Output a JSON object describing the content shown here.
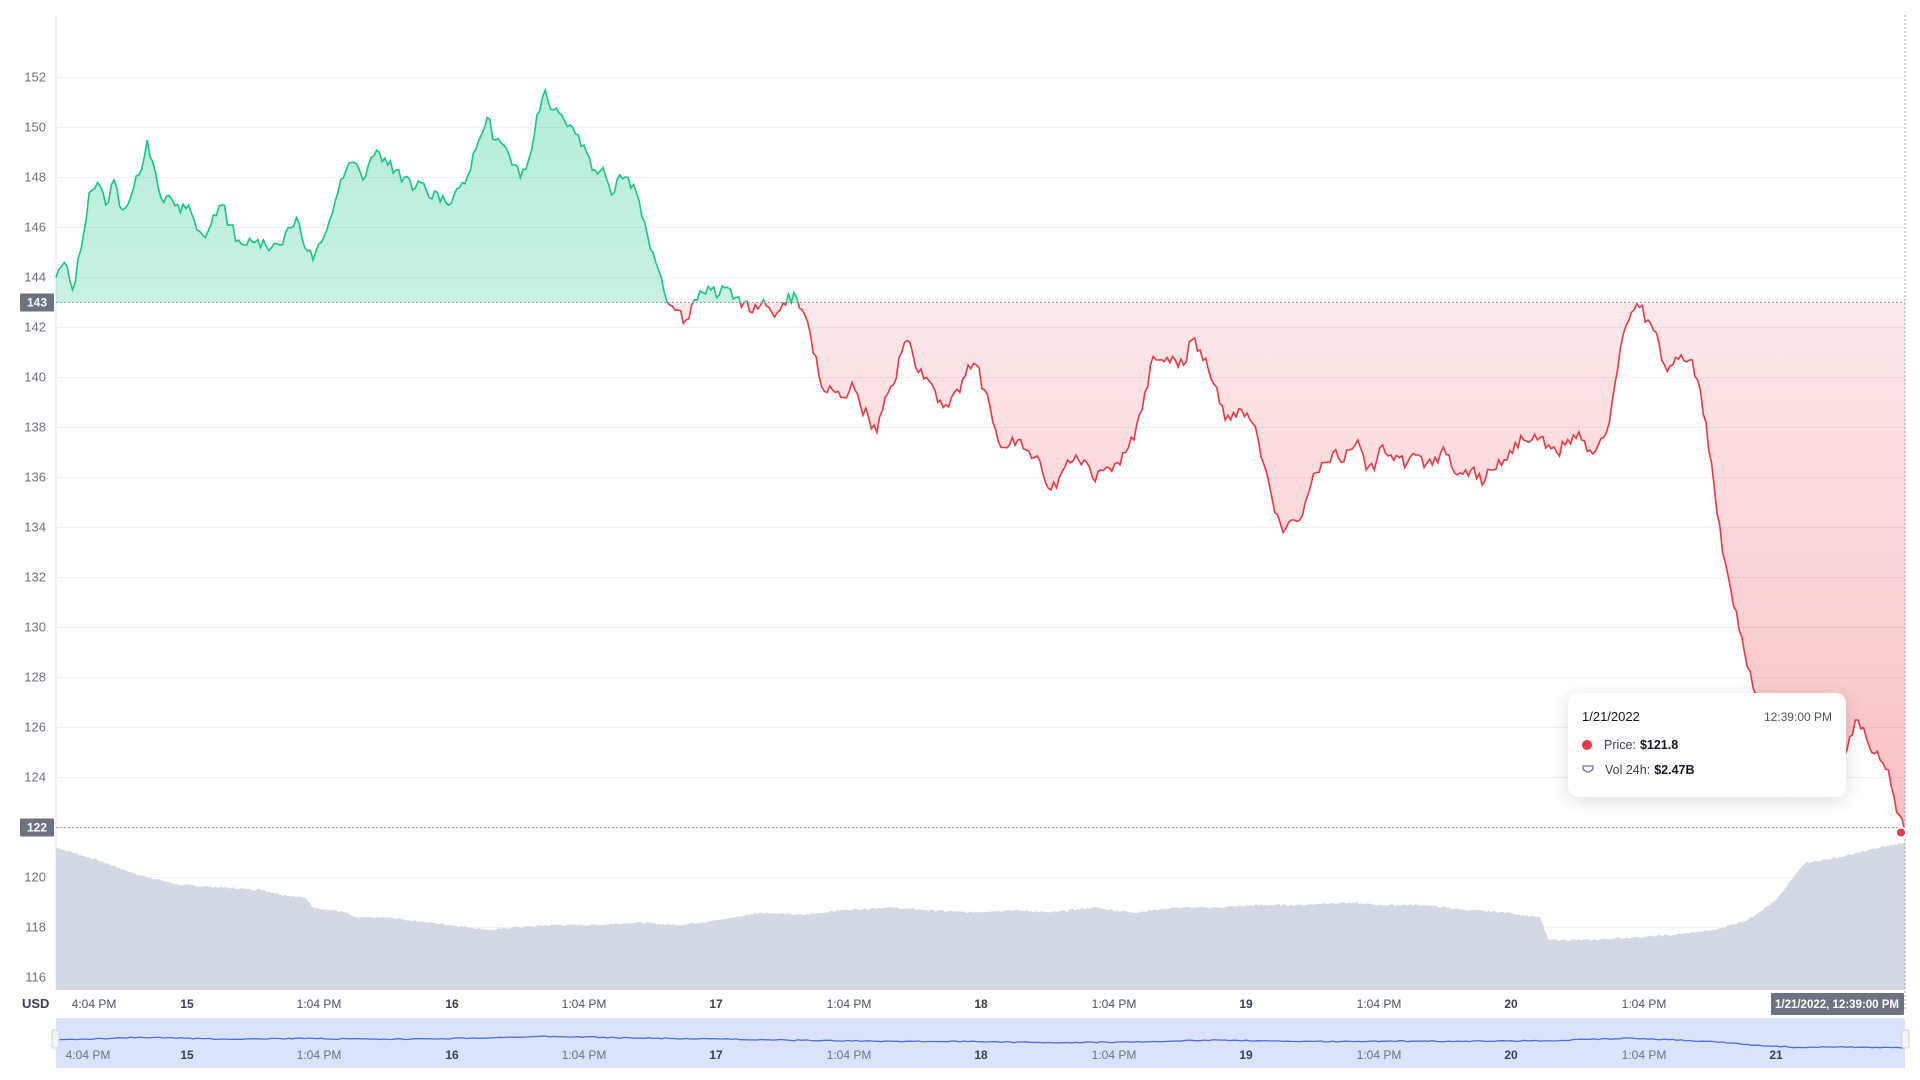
{
  "chart_data": {
    "type": "line",
    "currency_label": "USD",
    "y_ticks": [
      116,
      118,
      120,
      122,
      124,
      126,
      128,
      130,
      132,
      134,
      136,
      138,
      140,
      142,
      144,
      146,
      148,
      150,
      152
    ],
    "ylim": [
      115.5,
      153.5
    ],
    "reference_price": 143,
    "reference_label": "143",
    "current_label": "122",
    "colors": {
      "up": "#16c784",
      "down": "#ea3943",
      "volume": "#d3d9e4",
      "navigator": "#dbe3fc",
      "navigator_line": "#4a6ee0"
    },
    "x_ticks": [
      {
        "label": "4:04 PM",
        "day": false
      },
      {
        "label": "15",
        "day": true
      },
      {
        "label": "1:04 PM",
        "day": false
      },
      {
        "label": "16",
        "day": true
      },
      {
        "label": "1:04 PM",
        "day": false
      },
      {
        "label": "17",
        "day": true
      },
      {
        "label": "1:04 PM",
        "day": false
      },
      {
        "label": "18",
        "day": true
      },
      {
        "label": "1:04 PM",
        "day": false
      },
      {
        "label": "19",
        "day": true
      },
      {
        "label": "1:04 PM",
        "day": false
      },
      {
        "label": "20",
        "day": true
      },
      {
        "label": "1:04 PM",
        "day": false
      }
    ],
    "nav_ticks": [
      {
        "label": "4:04 PM",
        "day": false
      },
      {
        "label": "15",
        "day": true
      },
      {
        "label": "1:04 PM",
        "day": false
      },
      {
        "label": "16",
        "day": true
      },
      {
        "label": "1:04 PM",
        "day": false
      },
      {
        "label": "17",
        "day": true
      },
      {
        "label": "1:04 PM",
        "day": false
      },
      {
        "label": "18",
        "day": true
      },
      {
        "label": "1:04 PM",
        "day": false
      },
      {
        "label": "19",
        "day": true
      },
      {
        "label": "1:04 PM",
        "day": false
      },
      {
        "label": "20",
        "day": true
      },
      {
        "label": "1:04 PM",
        "day": false
      },
      {
        "label": "21",
        "day": true
      }
    ],
    "crosshair_label": "1/21/2022, 12:39:00 PM",
    "price_series": {
      "name": "Price",
      "points": [
        [
          0,
          144.0
        ],
        [
          0.02,
          144.6
        ],
        [
          0.04,
          143.5
        ],
        [
          0.06,
          145.1
        ],
        [
          0.08,
          147.4
        ],
        [
          0.1,
          147.8
        ],
        [
          0.12,
          146.9
        ],
        [
          0.14,
          147.9
        ],
        [
          0.16,
          146.7
        ],
        [
          0.18,
          147.2
        ],
        [
          0.2,
          148.1
        ],
        [
          0.22,
          149.5
        ],
        [
          0.24,
          148.2
        ],
        [
          0.26,
          147.0
        ],
        [
          0.28,
          147.1
        ],
        [
          0.3,
          146.6
        ],
        [
          0.32,
          146.9
        ],
        [
          0.34,
          145.9
        ],
        [
          0.36,
          145.6
        ],
        [
          0.38,
          146.5
        ],
        [
          0.4,
          146.9
        ],
        [
          0.42,
          146.1
        ],
        [
          0.44,
          145.5
        ],
        [
          0.46,
          145.3
        ],
        [
          0.48,
          145.4
        ],
        [
          0.5,
          145.5
        ],
        [
          0.52,
          145.2
        ],
        [
          0.54,
          145.3
        ],
        [
          0.56,
          146.0
        ],
        [
          0.58,
          146.4
        ],
        [
          0.6,
          145.2
        ],
        [
          0.62,
          144.7
        ],
        [
          0.64,
          145.4
        ],
        [
          0.66,
          146.3
        ],
        [
          0.68,
          147.4
        ],
        [
          0.7,
          148.3
        ],
        [
          0.72,
          148.6
        ],
        [
          0.74,
          147.9
        ],
        [
          0.76,
          148.8
        ],
        [
          0.78,
          149.0
        ],
        [
          0.8,
          148.5
        ],
        [
          0.82,
          148.3
        ],
        [
          0.84,
          148.0
        ],
        [
          0.86,
          147.5
        ],
        [
          0.88,
          147.8
        ],
        [
          0.9,
          147.2
        ],
        [
          0.92,
          147.4
        ],
        [
          0.94,
          147.0
        ],
        [
          0.96,
          147.3
        ],
        [
          0.98,
          147.8
        ],
        [
          1.0,
          148.3
        ],
        [
          1.02,
          149.5
        ],
        [
          1.04,
          150.4
        ],
        [
          1.06,
          149.5
        ],
        [
          1.08,
          149.3
        ],
        [
          1.1,
          148.5
        ],
        [
          1.12,
          148.0
        ],
        [
          1.14,
          148.7
        ],
        [
          1.16,
          150.5
        ],
        [
          1.18,
          151.5
        ],
        [
          1.2,
          150.7
        ],
        [
          1.22,
          150.5
        ],
        [
          1.24,
          150.1
        ],
        [
          1.26,
          149.7
        ],
        [
          1.28,
          149.0
        ],
        [
          1.3,
          148.3
        ],
        [
          1.32,
          148.4
        ],
        [
          1.34,
          147.3
        ],
        [
          1.36,
          148.1
        ],
        [
          1.38,
          148.0
        ],
        [
          1.4,
          147.4
        ],
        [
          1.42,
          146.2
        ],
        [
          1.44,
          145.0
        ],
        [
          1.46,
          144.0
        ],
        [
          1.48,
          142.9
        ],
        [
          1.5,
          142.7
        ],
        [
          1.52,
          142.3
        ],
        [
          1.54,
          143.1
        ],
        [
          1.56,
          143.4
        ],
        [
          1.58,
          143.5
        ],
        [
          1.6,
          143.3
        ],
        [
          1.62,
          143.6
        ],
        [
          1.64,
          143.2
        ],
        [
          1.66,
          143.0
        ],
        [
          1.68,
          142.6
        ],
        [
          1.7,
          142.9
        ],
        [
          1.72,
          142.8
        ],
        [
          1.74,
          142.6
        ],
        [
          1.76,
          142.9
        ],
        [
          1.78,
          143.4
        ],
        [
          1.8,
          142.7
        ],
        [
          1.82,
          141.7
        ],
        [
          1.84,
          140.1
        ],
        [
          1.86,
          139.4
        ],
        [
          1.88,
          139.4
        ],
        [
          1.9,
          139.2
        ],
        [
          1.92,
          139.8
        ],
        [
          1.94,
          138.9
        ],
        [
          1.96,
          138.4
        ],
        [
          1.98,
          137.8
        ],
        [
          2.0,
          139.2
        ],
        [
          2.02,
          139.7
        ],
        [
          2.04,
          141.0
        ],
        [
          2.06,
          141.4
        ],
        [
          2.08,
          140.2
        ],
        [
          2.1,
          140.0
        ],
        [
          2.12,
          139.5
        ],
        [
          2.14,
          138.8
        ],
        [
          2.16,
          139.2
        ],
        [
          2.18,
          139.4
        ],
        [
          2.2,
          140.5
        ],
        [
          2.22,
          140.5
        ],
        [
          2.24,
          139.5
        ],
        [
          2.26,
          138.2
        ],
        [
          2.28,
          137.2
        ],
        [
          2.3,
          137.3
        ],
        [
          2.32,
          137.5
        ],
        [
          2.34,
          137.1
        ],
        [
          2.36,
          136.8
        ],
        [
          2.38,
          136.2
        ],
        [
          2.4,
          135.5
        ],
        [
          2.42,
          136.0
        ],
        [
          2.44,
          136.7
        ],
        [
          2.46,
          136.9
        ],
        [
          2.48,
          136.7
        ],
        [
          2.5,
          136.0
        ],
        [
          2.52,
          136.3
        ],
        [
          2.54,
          136.4
        ],
        [
          2.56,
          136.6
        ],
        [
          2.58,
          137.0
        ],
        [
          2.6,
          137.5
        ],
        [
          2.62,
          138.7
        ],
        [
          2.64,
          140.5
        ],
        [
          2.66,
          140.7
        ],
        [
          2.68,
          140.8
        ],
        [
          2.7,
          140.7
        ],
        [
          2.72,
          140.5
        ],
        [
          2.74,
          141.5
        ],
        [
          2.76,
          141.1
        ],
        [
          2.78,
          140.3
        ],
        [
          2.8,
          139.6
        ],
        [
          2.82,
          138.3
        ],
        [
          2.84,
          138.6
        ],
        [
          2.86,
          138.7
        ],
        [
          2.88,
          138.3
        ],
        [
          2.9,
          137.5
        ],
        [
          2.92,
          136.2
        ],
        [
          2.94,
          134.6
        ],
        [
          2.96,
          133.8
        ],
        [
          2.98,
          134.3
        ],
        [
          3.0,
          134.3
        ],
        [
          3.02,
          135.3
        ],
        [
          3.04,
          136.2
        ],
        [
          3.06,
          136.6
        ],
        [
          3.08,
          137.0
        ],
        [
          3.1,
          136.6
        ],
        [
          3.12,
          137.1
        ],
        [
          3.14,
          137.5
        ],
        [
          3.16,
          136.3
        ],
        [
          3.18,
          136.3
        ],
        [
          3.2,
          137.3
        ],
        [
          3.22,
          136.9
        ],
        [
          3.24,
          136.8
        ],
        [
          3.26,
          136.6
        ],
        [
          3.28,
          136.9
        ],
        [
          3.3,
          136.4
        ],
        [
          3.32,
          136.5
        ],
        [
          3.34,
          137.0
        ],
        [
          3.36,
          136.9
        ],
        [
          3.38,
          136.1
        ],
        [
          3.4,
          136.3
        ],
        [
          3.42,
          136.4
        ],
        [
          3.44,
          135.7
        ],
        [
          3.46,
          136.3
        ],
        [
          3.48,
          136.7
        ],
        [
          3.5,
          136.7
        ],
        [
          3.52,
          137.4
        ],
        [
          3.54,
          137.5
        ],
        [
          3.56,
          137.5
        ],
        [
          3.58,
          137.6
        ],
        [
          3.6,
          137.3
        ],
        [
          3.62,
          137.0
        ],
        [
          3.64,
          137.3
        ],
        [
          3.66,
          137.7
        ],
        [
          3.68,
          137.5
        ],
        [
          3.7,
          137.1
        ],
        [
          3.72,
          137.3
        ],
        [
          3.74,
          137.8
        ],
        [
          3.76,
          139.7
        ],
        [
          3.78,
          141.7
        ],
        [
          3.8,
          142.6
        ],
        [
          3.82,
          142.8
        ],
        [
          3.84,
          142.3
        ],
        [
          3.86,
          141.8
        ],
        [
          3.88,
          140.5
        ],
        [
          3.9,
          140.5
        ],
        [
          3.92,
          140.9
        ],
        [
          3.94,
          140.7
        ],
        [
          3.96,
          139.9
        ],
        [
          3.98,
          138.2
        ],
        [
          4.0,
          135.6
        ],
        [
          4.02,
          133.0
        ],
        [
          4.04,
          131.5
        ],
        [
          4.06,
          129.9
        ],
        [
          4.08,
          128.4
        ],
        [
          4.1,
          127.3
        ],
        [
          4.12,
          126.2
        ],
        [
          4.14,
          125.2
        ],
        [
          4.16,
          123.8
        ],
        [
          4.17,
          123.3
        ],
        [
          4.18,
          124.4
        ],
        [
          4.2,
          125.3
        ],
        [
          4.22,
          125.9
        ],
        [
          4.24,
          125.4
        ],
        [
          4.26,
          126.3
        ],
        [
          4.28,
          125.9
        ],
        [
          4.3,
          125.0
        ],
        [
          4.32,
          125.1
        ],
        [
          4.34,
          126.3
        ],
        [
          4.36,
          126.0
        ],
        [
          4.38,
          125.0
        ],
        [
          4.4,
          124.7
        ],
        [
          4.42,
          124.3
        ],
        [
          4.44,
          122.6
        ],
        [
          4.46,
          121.8
        ]
      ]
    },
    "volume_series": {
      "name": "Vol 24h",
      "points": [
        [
          0,
          121.2
        ],
        [
          0.1,
          120.7
        ],
        [
          0.2,
          120.1
        ],
        [
          0.3,
          119.7
        ],
        [
          0.4,
          119.6
        ],
        [
          0.5,
          119.5
        ],
        [
          0.55,
          119.3
        ],
        [
          0.6,
          119.2
        ],
        [
          0.62,
          118.8
        ],
        [
          0.7,
          118.6
        ],
        [
          0.72,
          118.4
        ],
        [
          0.8,
          118.4
        ],
        [
          0.9,
          118.2
        ],
        [
          1.0,
          118.0
        ],
        [
          1.05,
          117.9
        ],
        [
          1.1,
          118.0
        ],
        [
          1.2,
          118.1
        ],
        [
          1.3,
          118.1
        ],
        [
          1.4,
          118.2
        ],
        [
          1.5,
          118.1
        ],
        [
          1.6,
          118.3
        ],
        [
          1.7,
          118.6
        ],
        [
          1.8,
          118.5
        ],
        [
          1.9,
          118.7
        ],
        [
          2.0,
          118.8
        ],
        [
          2.1,
          118.7
        ],
        [
          2.2,
          118.6
        ],
        [
          2.3,
          118.7
        ],
        [
          2.4,
          118.6
        ],
        [
          2.5,
          118.8
        ],
        [
          2.6,
          118.6
        ],
        [
          2.7,
          118.8
        ],
        [
          2.8,
          118.8
        ],
        [
          2.9,
          118.9
        ],
        [
          3.0,
          118.9
        ],
        [
          3.1,
          119.0
        ],
        [
          3.2,
          118.9
        ],
        [
          3.3,
          118.9
        ],
        [
          3.4,
          118.7
        ],
        [
          3.5,
          118.6
        ],
        [
          3.58,
          118.4
        ],
        [
          3.6,
          117.5
        ],
        [
          3.7,
          117.5
        ],
        [
          3.8,
          117.6
        ],
        [
          3.9,
          117.7
        ],
        [
          4.0,
          117.9
        ],
        [
          4.08,
          118.3
        ],
        [
          4.15,
          119.1
        ],
        [
          4.2,
          120.2
        ],
        [
          4.22,
          120.6
        ],
        [
          4.3,
          120.8
        ],
        [
          4.4,
          121.2
        ],
        [
          4.46,
          121.4
        ]
      ]
    },
    "navigator_series": {
      "points": [
        [
          0,
          0.55
        ],
        [
          0.2,
          0.42
        ],
        [
          0.4,
          0.5
        ],
        [
          0.6,
          0.48
        ],
        [
          0.8,
          0.52
        ],
        [
          1.0,
          0.46
        ],
        [
          1.2,
          0.38
        ],
        [
          1.4,
          0.46
        ],
        [
          1.6,
          0.5
        ],
        [
          1.8,
          0.56
        ],
        [
          2.0,
          0.6
        ],
        [
          2.2,
          0.62
        ],
        [
          2.4,
          0.66
        ],
        [
          2.6,
          0.64
        ],
        [
          2.8,
          0.54
        ],
        [
          3.0,
          0.62
        ],
        [
          3.2,
          0.6
        ],
        [
          3.4,
          0.6
        ],
        [
          3.6,
          0.58
        ],
        [
          3.8,
          0.46
        ],
        [
          4.0,
          0.62
        ],
        [
          4.1,
          0.78
        ],
        [
          4.2,
          0.88
        ],
        [
          4.3,
          0.86
        ],
        [
          4.46,
          0.9
        ]
      ]
    }
  },
  "tooltip": {
    "date": "1/21/2022",
    "time": "12:39:00 PM",
    "price_label": "Price:",
    "price_value": "$121.8",
    "volume_label": "Vol 24h:",
    "volume_value": "$2.47B"
  }
}
